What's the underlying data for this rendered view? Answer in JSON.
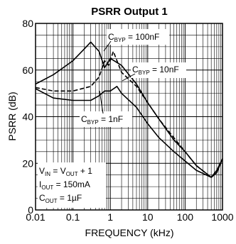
{
  "chart_data": {
    "type": "line",
    "title": "PSRR Output 1",
    "xlabel": "FREQUENCY (kHz)",
    "ylabel": "PSRR (dB)",
    "x_scale": "log",
    "xlim": [
      0.01,
      1000
    ],
    "ylim": [
      0,
      80
    ],
    "x_ticks": [
      "0.01",
      "0.1",
      "1",
      "10",
      "100",
      "1000"
    ],
    "y_ticks": [
      "0",
      "20",
      "40",
      "60",
      "80"
    ],
    "grid": true,
    "series": [
      {
        "name": "C_BYP = 100nF",
        "dash": "solid",
        "points": [
          [
            0.01,
            54
          ],
          [
            0.03,
            58
          ],
          [
            0.1,
            64
          ],
          [
            0.2,
            69
          ],
          [
            0.3,
            72
          ],
          [
            0.5,
            68
          ],
          [
            0.7,
            61
          ],
          [
            1,
            65
          ],
          [
            2,
            62
          ],
          [
            5,
            54
          ],
          [
            10,
            46
          ],
          [
            20,
            39
          ],
          [
            50,
            30
          ],
          [
            100,
            25
          ],
          [
            200,
            19
          ],
          [
            500,
            14
          ],
          [
            700,
            16
          ],
          [
            1000,
            22
          ]
        ]
      },
      {
        "name": "C_BYP = 10nF",
        "dash": "dashed",
        "points": [
          [
            0.01,
            52.5
          ],
          [
            0.03,
            51
          ],
          [
            0.1,
            51
          ],
          [
            0.3,
            53
          ],
          [
            0.5,
            57
          ],
          [
            0.7,
            64
          ],
          [
            0.9,
            62
          ],
          [
            1.2,
            68
          ],
          [
            2,
            59
          ],
          [
            5,
            53
          ],
          [
            10,
            46
          ],
          [
            20,
            39
          ],
          [
            50,
            31
          ],
          [
            100,
            25
          ],
          [
            200,
            19
          ],
          [
            500,
            14
          ],
          [
            700,
            16
          ],
          [
            1000,
            22
          ]
        ]
      },
      {
        "name": "C_BYP = 1nF",
        "dash": "solid",
        "points": [
          [
            0.01,
            52
          ],
          [
            0.03,
            48
          ],
          [
            0.1,
            47
          ],
          [
            0.3,
            47
          ],
          [
            0.5,
            49
          ],
          [
            0.7,
            51
          ],
          [
            1,
            51
          ],
          [
            1.5,
            53
          ],
          [
            2,
            50
          ],
          [
            5,
            44
          ],
          [
            10,
            37
          ],
          [
            20,
            31
          ],
          [
            50,
            25
          ],
          [
            100,
            21
          ],
          [
            200,
            17
          ],
          [
            500,
            14
          ],
          [
            700,
            17
          ],
          [
            1000,
            22
          ]
        ]
      }
    ],
    "annotations": [
      {
        "text": "C",
        "sub": "BYP",
        "rest": " = 100nF"
      },
      {
        "text": "C",
        "sub": "BYP",
        "rest": " = 10nF"
      },
      {
        "text": "C",
        "sub": "BYP",
        "rest": " = 1nF"
      },
      {
        "text": "V",
        "sub": "IN",
        "mid": " = V",
        "sub2": "OUT",
        "rest": " + 1"
      },
      {
        "text": "I",
        "sub": "OUT",
        "rest": " = 150mA"
      },
      {
        "text": "C",
        "sub": "OUT",
        "rest": " = 1µF"
      }
    ]
  }
}
